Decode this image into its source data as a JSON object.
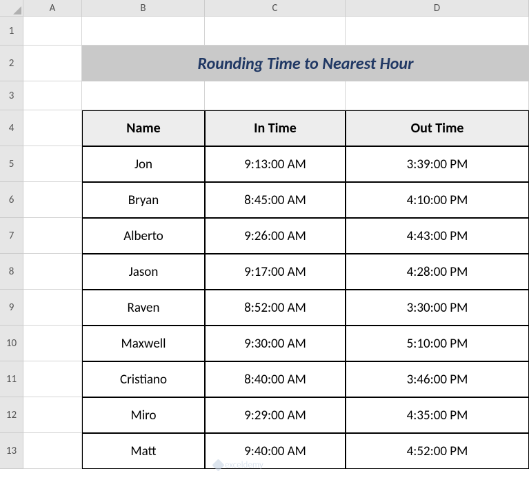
{
  "columns": {
    "labels": [
      "A",
      "B",
      "C",
      "D"
    ],
    "widths": [
      85,
      178,
      204,
      266
    ]
  },
  "rows": {
    "labels": [
      "1",
      "2",
      "3",
      "4",
      "5",
      "6",
      "7",
      "8",
      "9",
      "10",
      "11",
      "12",
      "13"
    ],
    "heights": [
      42,
      52,
      42,
      52,
      52,
      52,
      52,
      52,
      52,
      52,
      52,
      52,
      52
    ]
  },
  "title": {
    "text": "Rounding Time to Nearest Hour",
    "bg_color": "#c9c9c9",
    "text_color": "#203864",
    "fontsize": 24,
    "italic": true,
    "bold": true
  },
  "table": {
    "header_bg": "#ededed",
    "border_color": "#000000",
    "columns": [
      "Name",
      "In Time",
      "Out Time"
    ],
    "rows": [
      [
        "Jon",
        "9:13:00 AM",
        "3:39:00 PM"
      ],
      [
        "Bryan",
        "8:45:00 AM",
        "4:10:00 PM"
      ],
      [
        "Alberto",
        "9:26:00 AM",
        "4:43:00 PM"
      ],
      [
        "Jason",
        "9:17:00 AM",
        "4:28:00 PM"
      ],
      [
        "Raven",
        "8:52:00 AM",
        "3:30:00 PM"
      ],
      [
        "Maxwell",
        "9:30:00 AM",
        "5:10:00 PM"
      ],
      [
        "Cristiano",
        "8:40:00 AM",
        "3:46:00 PM"
      ],
      [
        "Miro",
        "9:29:00 AM",
        "4:35:00 PM"
      ],
      [
        "Matt",
        "9:40:00 AM",
        "4:52:00 PM"
      ]
    ]
  },
  "watermark": "exceldemy"
}
